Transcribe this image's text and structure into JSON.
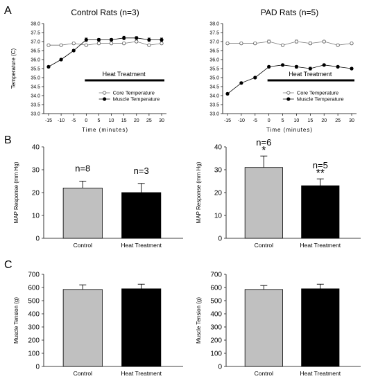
{
  "panel_labels": [
    "A",
    "B",
    "C"
  ],
  "chart_data": [
    {
      "id": "a1",
      "type": "line",
      "title": "Control Rats (n=3)",
      "xlabel": "Time (minutes)",
      "ylabel": "Temperature (C)",
      "xlim": [
        -15,
        30
      ],
      "ylim": [
        33.0,
        38.0
      ],
      "x": [
        -15,
        -10,
        -5,
        0,
        5,
        10,
        15,
        20,
        25,
        30
      ],
      "xtick_labels": [
        "-15",
        "-10",
        "-5",
        "0",
        "5",
        "10",
        "15",
        "20",
        "25",
        "30"
      ],
      "ytick_labels": [
        "33.0",
        "33.5",
        "34.0",
        "34.5",
        "35.0",
        "35.5",
        "36.0",
        "36.5",
        "37.0",
        "37.5",
        "38.0"
      ],
      "series": [
        {
          "name": "Core Temperature",
          "marker": "open-circle",
          "values": [
            36.8,
            36.8,
            36.9,
            36.8,
            36.9,
            36.9,
            36.9,
            37.0,
            36.8,
            36.9
          ],
          "err": [
            0.06,
            0.06,
            0.06,
            0.06,
            0.06,
            0.06,
            0.06,
            0.06,
            0.06,
            0.06
          ]
        },
        {
          "name": "Muscle Temperature",
          "marker": "filled-circle",
          "values": [
            35.6,
            36.0,
            36.5,
            37.1,
            37.1,
            37.1,
            37.2,
            37.2,
            37.1,
            37.1
          ],
          "err": [
            0.06,
            0.06,
            0.06,
            0.1,
            0.08,
            0.08,
            0.1,
            0.08,
            0.1,
            0.1
          ]
        }
      ],
      "annotation": {
        "text": "Heat Treatment",
        "x_start": 0,
        "x_end": 30
      },
      "legend": "bottom-right"
    },
    {
      "id": "a2",
      "type": "line",
      "title": "PAD Rats (n=5)",
      "xlabel": "Time (minutes)",
      "ylabel": "",
      "xlim": [
        -15,
        30
      ],
      "ylim": [
        33.0,
        38.0
      ],
      "x": [
        -15,
        -10,
        -5,
        0,
        5,
        10,
        15,
        20,
        25,
        30
      ],
      "xtick_labels": [
        "-15",
        "-10",
        "-5",
        "0",
        "5",
        "10",
        "15",
        "20",
        "25",
        "30"
      ],
      "ytick_labels": [
        "33.0",
        "33.5",
        "34.0",
        "34.5",
        "35.0",
        "35.5",
        "36.0",
        "36.5",
        "37.0",
        "37.5",
        "38.0"
      ],
      "series": [
        {
          "name": "Core Temperature",
          "marker": "open-circle",
          "values": [
            36.9,
            36.9,
            36.9,
            37.0,
            36.8,
            37.0,
            36.9,
            37.0,
            36.8,
            36.9
          ],
          "err": [
            0.06,
            0.06,
            0.06,
            0.08,
            0.06,
            0.08,
            0.08,
            0.06,
            0.06,
            0.06
          ]
        },
        {
          "name": "Muscle Temperature",
          "marker": "filled-circle",
          "values": [
            34.1,
            34.7,
            35.0,
            35.6,
            35.7,
            35.6,
            35.5,
            35.7,
            35.6,
            35.5
          ],
          "err": [
            0.06,
            0.06,
            0.06,
            0.06,
            0.06,
            0.08,
            0.08,
            0.06,
            0.06,
            0.06
          ]
        }
      ],
      "annotation": {
        "text": "Heat Treatment",
        "x_start": 0,
        "x_end": 30
      },
      "legend": "bottom-right"
    },
    {
      "id": "b1",
      "type": "bar",
      "ylabel": "MAP Response (mm Hg)",
      "ylim": [
        0,
        40
      ],
      "ytick_labels": [
        "0",
        "10",
        "20",
        "30",
        "40"
      ],
      "categories": [
        "Control",
        "Heat Treatment"
      ],
      "values": [
        22,
        20
      ],
      "err": [
        3,
        4
      ],
      "colors": [
        "#c0c0c0",
        "#000000"
      ],
      "labels": [
        {
          "n": "n=8",
          "sig": ""
        },
        {
          "n": "n=3",
          "sig": ""
        }
      ]
    },
    {
      "id": "b2",
      "type": "bar",
      "ylabel": "MAP Response (mm Hg)",
      "ylim": [
        0,
        40
      ],
      "ytick_labels": [
        "0",
        "10",
        "20",
        "30",
        "40"
      ],
      "categories": [
        "Control",
        "Heat Treatment"
      ],
      "values": [
        31,
        23
      ],
      "err": [
        5,
        3
      ],
      "colors": [
        "#c0c0c0",
        "#000000"
      ],
      "labels": [
        {
          "n": "n=6",
          "sig": "*"
        },
        {
          "n": "n=5",
          "sig": "**"
        }
      ]
    },
    {
      "id": "c1",
      "type": "bar",
      "ylabel": "Muscle Tension (g)",
      "ylim": [
        0,
        700
      ],
      "ytick_labels": [
        "0",
        "100",
        "200",
        "300",
        "400",
        "500",
        "600",
        "700"
      ],
      "categories": [
        "Control",
        "Heat Treatment"
      ],
      "values": [
        585,
        590
      ],
      "err": [
        35,
        35
      ],
      "colors": [
        "#c0c0c0",
        "#000000"
      ],
      "labels": [
        {
          "n": "",
          "sig": ""
        },
        {
          "n": "",
          "sig": ""
        }
      ]
    },
    {
      "id": "c2",
      "type": "bar",
      "ylabel": "Muscle Tension (g)",
      "ylim": [
        0,
        700
      ],
      "ytick_labels": [
        "0",
        "100",
        "200",
        "300",
        "400",
        "500",
        "600",
        "700"
      ],
      "categories": [
        "Control",
        "Heat Treatment"
      ],
      "values": [
        585,
        590
      ],
      "err": [
        30,
        35
      ],
      "colors": [
        "#c0c0c0",
        "#000000"
      ],
      "labels": [
        {
          "n": "",
          "sig": ""
        },
        {
          "n": "",
          "sig": ""
        }
      ]
    }
  ]
}
